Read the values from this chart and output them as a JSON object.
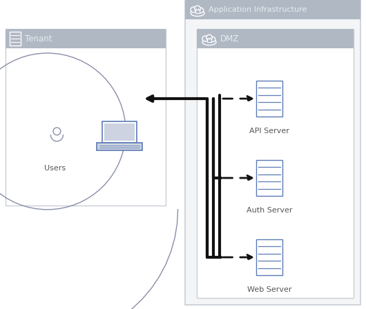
{
  "bg_color": "#ffffff",
  "border_light": "#c8cdd6",
  "header_bg": "#b0b8c4",
  "app_infra_label": "Application Infrastructure",
  "dmz_label": "DMZ",
  "tenant_label": "Tenant",
  "users_label": "Users",
  "api_label": "API Server",
  "auth_label": "Auth Server",
  "web_label": "Web Server",
  "label_color": "#8a9ab0",
  "text_color": "#555555",
  "icon_color": "#5a7ab5",
  "server_color": "#5a7ab5",
  "arrow_color": "#111111",
  "header_icon_color": "#ffffff",
  "tenant_icon_color": "#888ea8"
}
